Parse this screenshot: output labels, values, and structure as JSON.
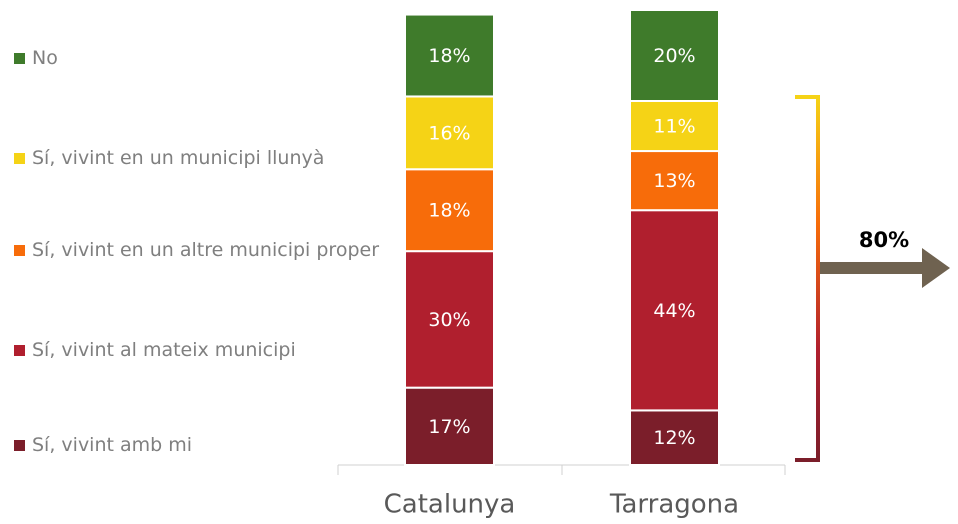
{
  "chart_data": {
    "type": "stacked-bar",
    "categories": [
      "Catalunya",
      "Tarragona"
    ],
    "series": [
      {
        "name": "Sí, vivint amb mi",
        "color": "#7b1e2a",
        "values": [
          17,
          12
        ],
        "value_labels": [
          "17%",
          "12%"
        ]
      },
      {
        "name": "Sí, vivint al mateix municipi",
        "color": "#b01f2e",
        "values": [
          30,
          44
        ],
        "value_labels": [
          "30%",
          "44%"
        ]
      },
      {
        "name": "Sí, vivint en un altre municipi proper",
        "color": "#f76c0a",
        "values": [
          18,
          13
        ],
        "value_labels": [
          "18%",
          "13%"
        ]
      },
      {
        "name": "Sí, vivint en un municipi llunyà",
        "color": "#f5d316",
        "values": [
          16,
          11
        ],
        "value_labels": [
          "16%",
          "11%"
        ]
      },
      {
        "name": "No",
        "color": "#3f7b2b",
        "values": [
          18,
          20
        ],
        "value_labels": [
          "18%",
          "20%"
        ]
      }
    ],
    "annotation": "80%"
  }
}
